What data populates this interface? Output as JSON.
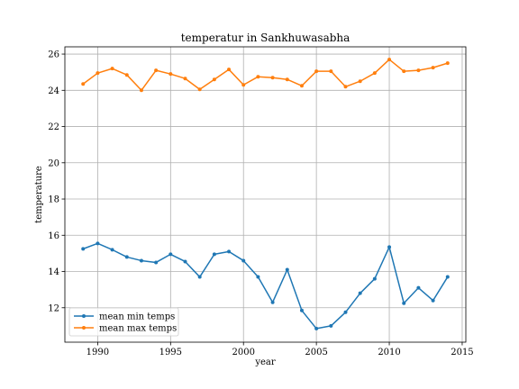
{
  "chart_data": {
    "type": "line",
    "title": "temperatur in Sankhuwasabha",
    "xlabel": "year",
    "ylabel": "temperature",
    "xlim": [
      1987.75,
      2015.25
    ],
    "ylim": [
      10.1,
      26.4
    ],
    "xticks": [
      1990,
      1995,
      2000,
      2005,
      2010,
      2015
    ],
    "yticks": [
      12,
      14,
      16,
      18,
      20,
      22,
      24,
      26
    ],
    "grid": true,
    "legend_position": "lower-left",
    "x": [
      1989,
      1990,
      1991,
      1992,
      1993,
      1994,
      1995,
      1996,
      1997,
      1998,
      1999,
      2000,
      2001,
      2002,
      2003,
      2004,
      2005,
      2006,
      2007,
      2008,
      2009,
      2010,
      2011,
      2012,
      2013,
      2014
    ],
    "series": [
      {
        "name": "mean min temps",
        "color": "#1f77b4",
        "values": [
          15.25,
          15.55,
          15.2,
          14.8,
          14.6,
          14.5,
          14.95,
          14.55,
          13.7,
          14.95,
          15.1,
          14.6,
          13.7,
          12.3,
          14.1,
          11.85,
          10.85,
          11.0,
          11.75,
          12.8,
          13.6,
          15.35,
          12.25,
          13.1,
          12.4,
          13.7
        ]
      },
      {
        "name": "mean max temps",
        "color": "#ff7f0e",
        "values": [
          24.35,
          24.95,
          25.2,
          24.85,
          24.0,
          25.1,
          24.9,
          24.65,
          24.05,
          24.6,
          25.15,
          24.3,
          24.75,
          24.7,
          24.6,
          24.25,
          25.05,
          25.05,
          24.2,
          24.5,
          24.95,
          25.7,
          25.05,
          25.1,
          25.25,
          25.5
        ]
      }
    ]
  }
}
